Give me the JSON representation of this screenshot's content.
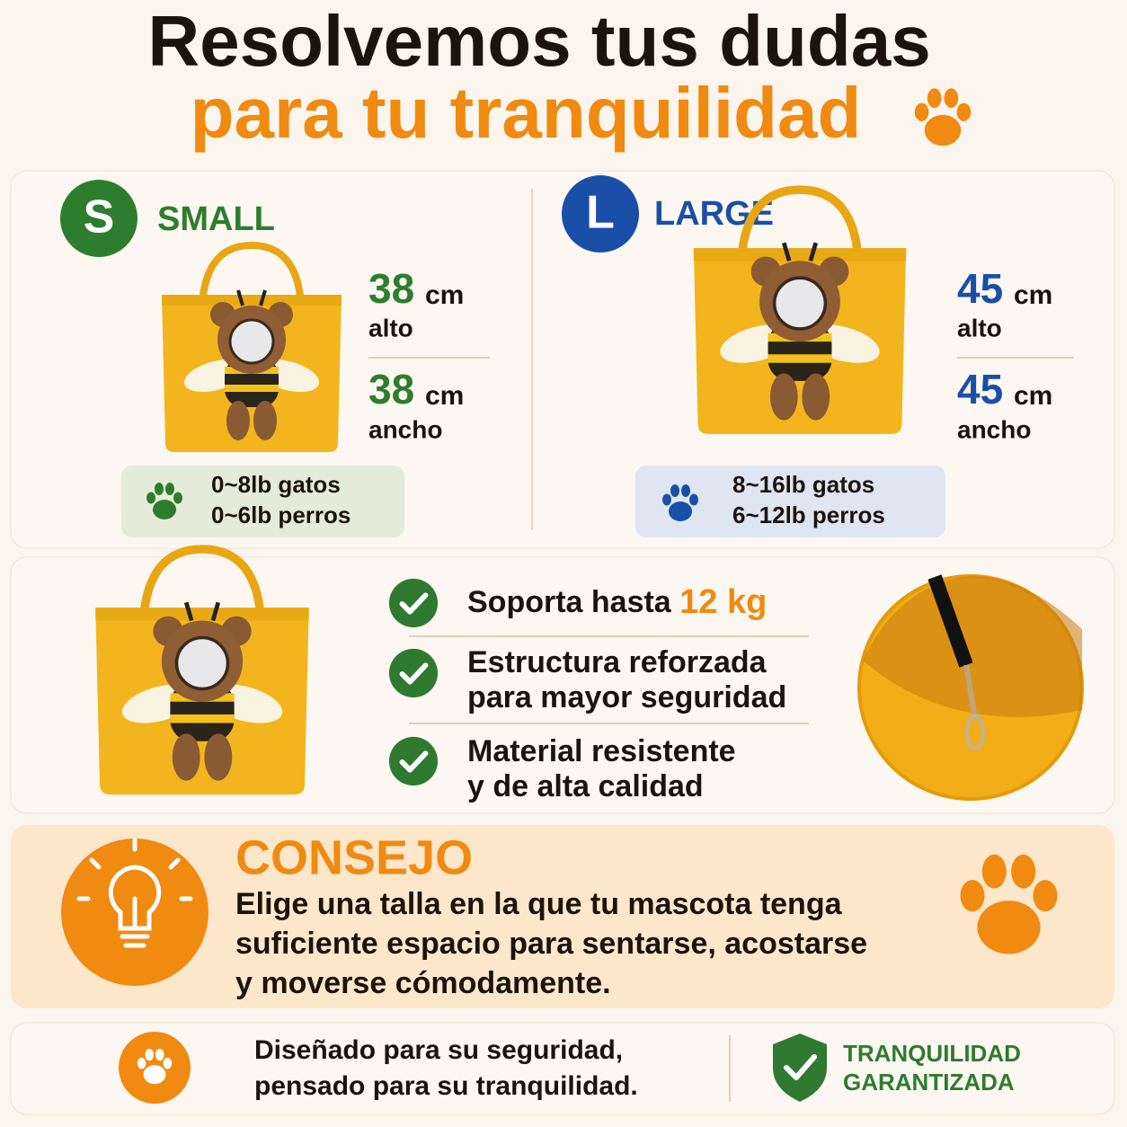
{
  "header": {
    "line1": "Resolvemos tus dudas",
    "line2": "para tu tranquilidad"
  },
  "sizes": [
    {
      "badge": "S",
      "name": "SMALL",
      "height_value": 38,
      "height_unit": "cm",
      "height_label": "alto",
      "width_value": 38,
      "width_unit": "cm",
      "width_label": "ancho",
      "capacity": [
        "0~8lb gatos",
        "0~6lb perros"
      ]
    },
    {
      "badge": "L",
      "name": "LARGE",
      "height_value": 45,
      "height_unit": "cm",
      "height_label": "alto",
      "width_value": 45,
      "width_unit": "cm",
      "width_label": "ancho",
      "capacity": [
        "8~16lb gatos",
        "6~12lb perros"
      ]
    }
  ],
  "features": [
    {
      "text": "Soporta hasta",
      "highlight": "12 kg"
    },
    {
      "lines": [
        "Estructura reforzada",
        "para mayor seguridad"
      ]
    },
    {
      "lines": [
        "Material resistente",
        "y de alta calidad"
      ]
    }
  ],
  "tip": {
    "title": "CONSEJO",
    "lines": [
      "Elige una talla en la que tu mascota tenga",
      "suficiente espacio para sentarse, acostarse",
      "y moverse cómodamente."
    ]
  },
  "footer": {
    "lines": [
      "Diseñado para su seguridad,",
      "pensado para su tranquilidad."
    ],
    "badge": [
      "TRANQUILIDAD",
      "GARANTIZADA"
    ]
  }
}
